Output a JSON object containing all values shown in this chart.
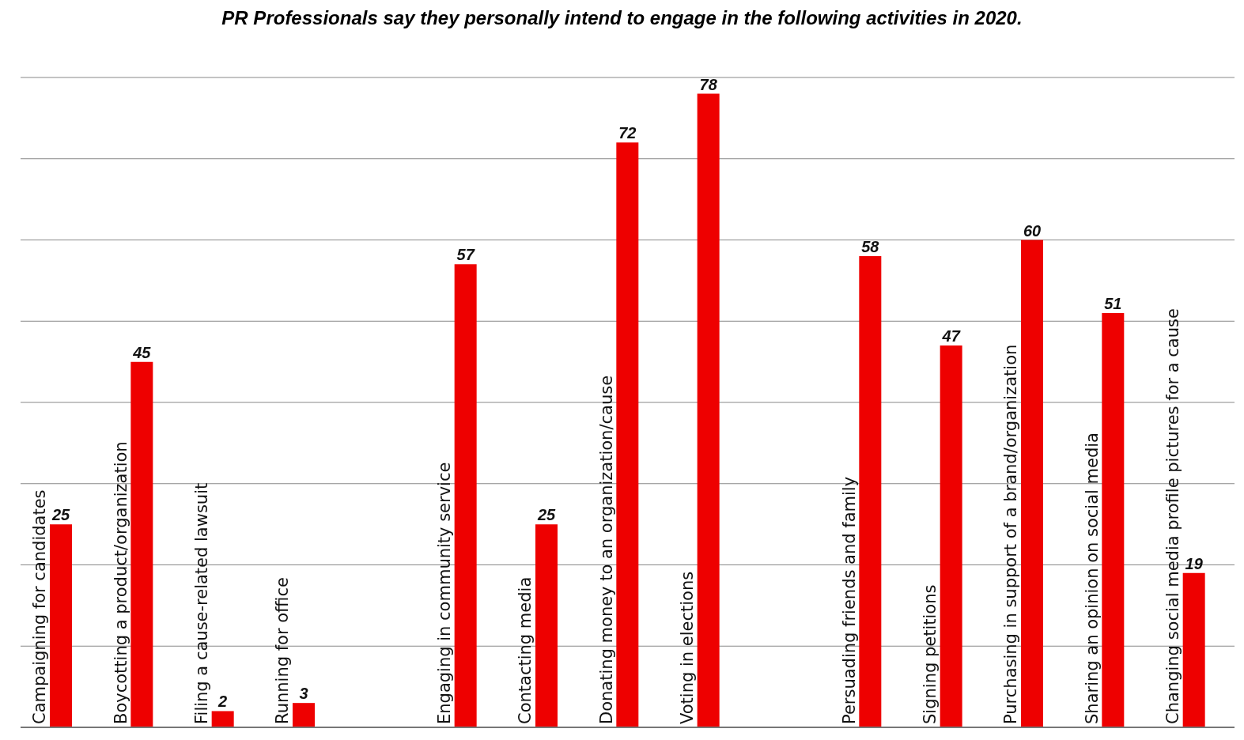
{
  "chart_data": {
    "type": "bar",
    "title": "PR Professionals say they personally intend to engage in the following activities in 2020.",
    "categories": [
      "Campaigning for candidates",
      "Boycotting a product/organization",
      "Filing a cause-related lawsuit",
      "Running for office",
      null,
      "Engaging in community service",
      "Contacting media",
      "Donating money to an organization/cause",
      "Voting in elections",
      null,
      "Persuading friends and family",
      "Signing petitions",
      "Purchasing in support of a brand/organization",
      "Sharing an opinion on social media",
      "Changing social media profile pictures for a cause"
    ],
    "values": [
      25,
      45,
      2,
      3,
      null,
      57,
      25,
      72,
      78,
      null,
      58,
      47,
      60,
      51,
      19
    ],
    "color": "#ee0000",
    "data_labels": true,
    "grid": "y",
    "tick_labels": "x",
    "ylim": [
      0,
      80
    ]
  }
}
